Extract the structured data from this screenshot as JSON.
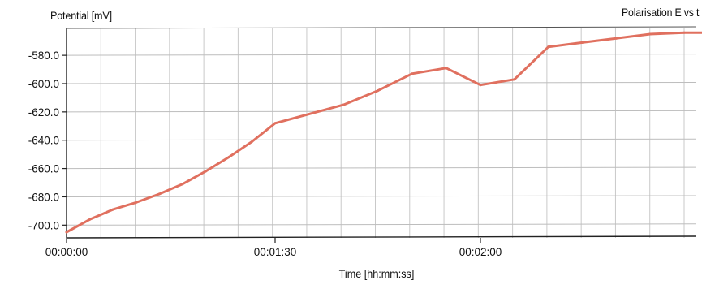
{
  "chart_data": {
    "type": "line",
    "title": "Polarisation E vs t",
    "xlabel": "Time [hh:mm:ss]",
    "ylabel": "Potential [mV]",
    "x_tick_labels": [
      "00:00:00",
      "00:01:30",
      "00:02:00"
    ],
    "y_tick_labels": [
      "-580.0",
      "-600.0",
      "-620.0",
      "-640.0",
      "-660.0",
      "-680.0",
      "-700.0"
    ],
    "ylim": [
      -709,
      -561
    ],
    "grid": true,
    "series": [
      {
        "color": "#e0705f",
        "x": [
          "00:00:00",
          "00:00:10",
          "00:00:20",
          "00:00:30",
          "00:00:40",
          "00:00:50",
          "00:01:00",
          "00:01:10",
          "00:01:20",
          "00:01:30",
          "00:01:40",
          "00:01:45",
          "00:01:50",
          "00:01:55",
          "00:02:00",
          "00:02:05",
          "00:02:10",
          "00:02:15",
          "00:02:20",
          "00:02:25",
          "00:02:30",
          "00:02:35"
        ],
        "y": [
          -705,
          -696,
          -689,
          -684,
          -678,
          -671,
          -662,
          -652,
          -641,
          -628,
          -615,
          -605,
          -593,
          -589,
          -601,
          -597,
          -574,
          -571,
          -568,
          -565,
          -564,
          -564
        ]
      }
    ]
  }
}
